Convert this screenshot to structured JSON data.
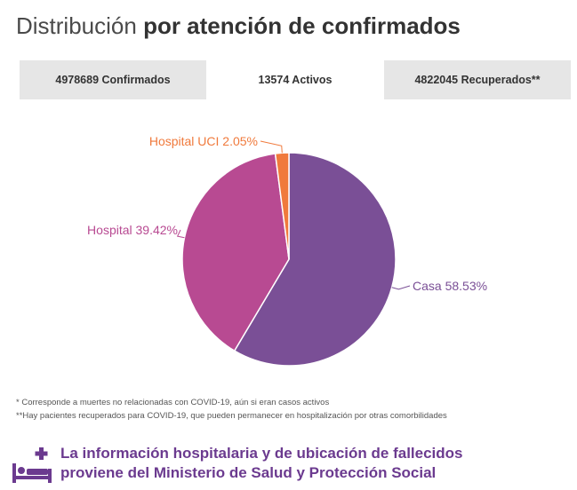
{
  "title": {
    "light": "Distribución",
    "bold": "por atención de confirmados"
  },
  "tabs": [
    {
      "label": "4978689 Confirmados",
      "active": false
    },
    {
      "label": "13574 Activos",
      "active": true
    },
    {
      "label": "4822045 Recuperados**",
      "active": false
    }
  ],
  "chart_data": {
    "type": "pie",
    "slices": [
      {
        "label": "Casa 58.53%",
        "value": 58.53,
        "color": "#7a4f96"
      },
      {
        "label": "Hospital 39.42%",
        "value": 39.42,
        "color": "#b84a92"
      },
      {
        "label": "Hospital UCI 2.05%",
        "value": 2.05,
        "color": "#f07a3c"
      }
    ]
  },
  "notes": {
    "line1": "* Corresponde a muertes no relacionadas con COVID-19, aún si eran casos activos",
    "line2": "**Hay pacientes recuperados para COVID-19, que pueden permanecer en hospitalización por otras comorbilidades"
  },
  "footer": {
    "line1": "La información hospitalaria y de ubicación de fallecidos",
    "line2": "proviene del Ministerio de Salud y Protección Social",
    "icon": "hospital-bed-icon",
    "color": "#6b3a8f"
  }
}
